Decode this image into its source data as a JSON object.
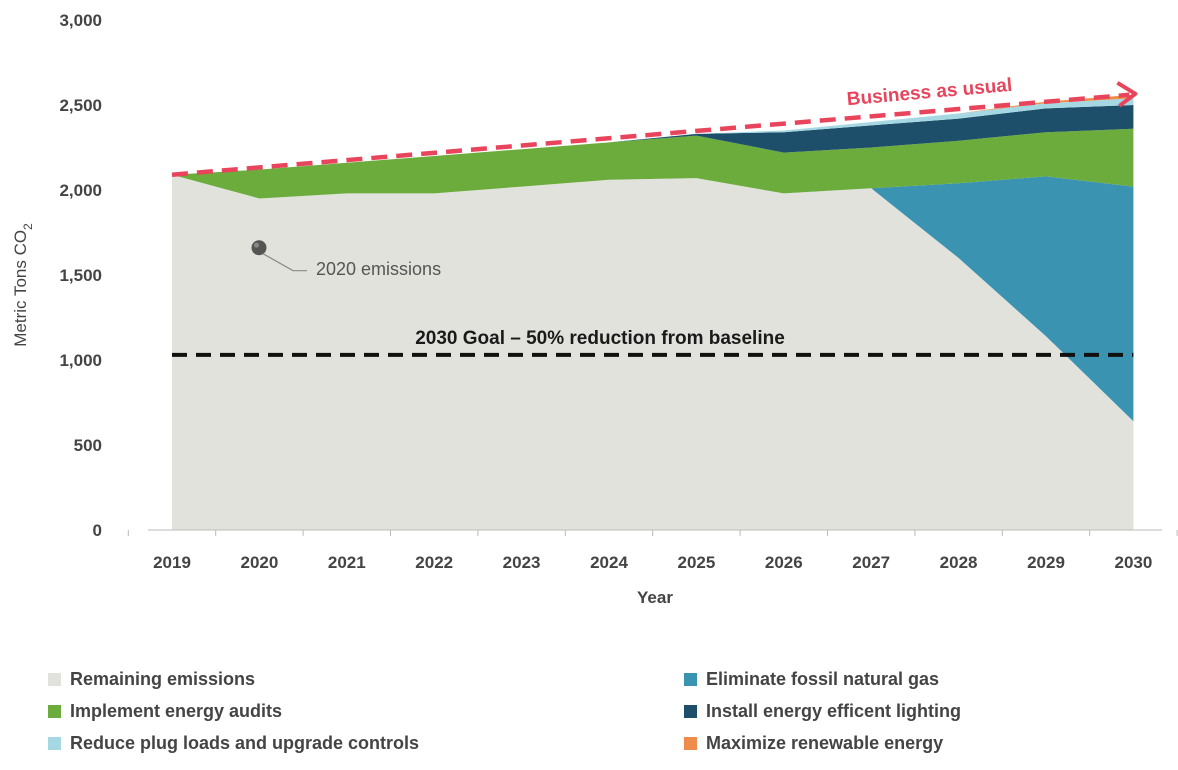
{
  "chart_data": {
    "type": "area",
    "title": "",
    "xlabel": "Year",
    "ylabel": "Metric Tons CO",
    "ylabel_subscript": "2",
    "ylim": [
      0,
      3000
    ],
    "yticks": [
      0,
      500,
      1000,
      1500,
      2000,
      2500,
      3000
    ],
    "ytick_labels": [
      "0",
      "500",
      "1,000",
      "1,500",
      "2,000",
      "2,500",
      "3,000"
    ],
    "x": [
      2019,
      2020,
      2021,
      2022,
      2023,
      2024,
      2025,
      2026,
      2027,
      2028,
      2029,
      2030
    ],
    "x_labels": [
      "2019",
      "2020",
      "2021",
      "2022",
      "2023",
      "2024",
      "2025",
      "2026",
      "2027",
      "2028",
      "2029",
      "2030"
    ],
    "stacked": true,
    "series": [
      {
        "name": "Remaining emissions",
        "color": "#e2e2dd",
        "values": [
          2090,
          1950,
          1980,
          1980,
          2020,
          2060,
          2070,
          1980,
          2010,
          1600,
          1140,
          640
        ]
      },
      {
        "name": "Eliminate fossil natural gas",
        "color": "#3a93b0",
        "values": [
          0,
          0,
          0,
          0,
          0,
          0,
          0,
          0,
          0,
          440,
          940,
          1380
        ]
      },
      {
        "name": "Implement energy audits",
        "color": "#6bac3c",
        "values": [
          0,
          170,
          180,
          220,
          220,
          220,
          250,
          240,
          240,
          250,
          260,
          340
        ]
      },
      {
        "name": "Install energy efficent lighting",
        "color": "#1d4f6a",
        "values": [
          0,
          0,
          0,
          0,
          0,
          0,
          10,
          120,
          130,
          130,
          140,
          140
        ]
      },
      {
        "name": "Reduce plug loads and upgrade controls",
        "color": "#a6d8e4",
        "values": [
          0,
          0,
          0,
          0,
          0,
          0,
          0,
          10,
          20,
          30,
          30,
          40
        ]
      },
      {
        "name": "Maximize renewable energy",
        "color": "#f08c4b",
        "values": [
          0,
          0,
          0,
          0,
          0,
          0,
          0,
          0,
          0,
          0,
          10,
          20
        ]
      }
    ],
    "reference_lines": {
      "business_as_usual": {
        "label": "Business as usual",
        "color": "#e8455d",
        "start": 2090,
        "end": 2560
      },
      "goal": {
        "label": "2030 Goal – 50% reduction from baseline",
        "value": 1030,
        "color": "#111111"
      }
    },
    "annotations": [
      {
        "label": "2020 emissions",
        "x": 2020,
        "y": 1690
      }
    ],
    "legend_placement": "bottom"
  }
}
